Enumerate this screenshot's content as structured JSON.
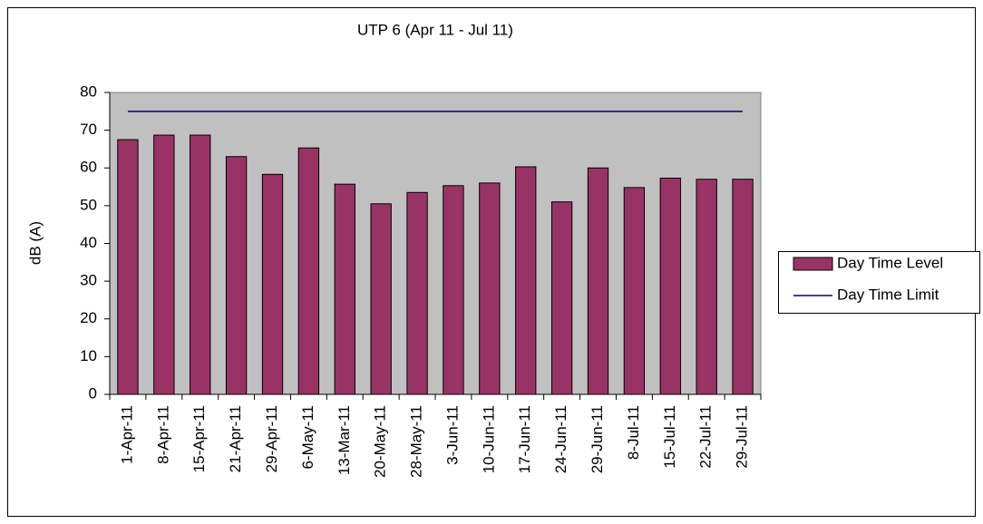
{
  "chart_data": {
    "type": "bar",
    "title": "UTP 6 (Apr 11 - Jul 11)",
    "y_label": "dB (A)",
    "categories": [
      "1-Apr-11",
      "8-Apr-11",
      "15-Apr-11",
      "21-Apr-11",
      "29-Apr-11",
      "6-May-11",
      "13-Mar-11",
      "20-May-11",
      "28-May-11",
      "3-Jun-11",
      "10-Jun-11",
      "17-Jun-11",
      "24-Jun-11",
      "29-Jun-11",
      "8-Jul-11",
      "15-Jul-11",
      "22-Jul-11",
      "29-Jul-11"
    ],
    "series": [
      {
        "name": "Day Time Level",
        "type": "bar",
        "color": "#993366",
        "values": [
          67.5,
          68.7,
          68.7,
          63,
          58.3,
          65.3,
          55.7,
          50.5,
          53.5,
          55.3,
          56,
          60.3,
          51,
          60,
          54.8,
          57.3,
          57,
          57
        ]
      },
      {
        "name": "Day Time Limit",
        "type": "line",
        "color": "#000080",
        "values": [
          75,
          75,
          75,
          75,
          75,
          75,
          75,
          75,
          75,
          75,
          75,
          75,
          75,
          75,
          75,
          75,
          75,
          75
        ]
      }
    ],
    "ylim": [
      0,
      80
    ],
    "yticks": [
      0,
      10,
      20,
      30,
      40,
      50,
      60,
      70,
      80
    ],
    "grid": false,
    "plot_background": "#c0c0c0",
    "legend": "right"
  }
}
